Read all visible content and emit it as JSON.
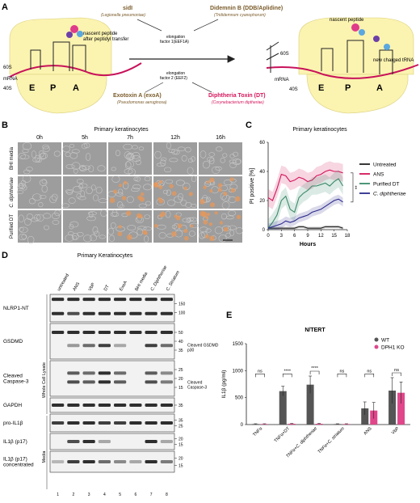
{
  "panels": {
    "a": {
      "letter": "A",
      "sidl": {
        "name": "sidI",
        "org": "(Legionella pneumoniae)"
      },
      "didemnin": {
        "name": "Didemnin B (DDB/Aplidine)",
        "org": "(Trididemnum cyanophorum)"
      },
      "exoa": {
        "name": "Exotoxin A (exoA)",
        "org": "(Pseudomonas aeruginosa)"
      },
      "dt": {
        "name": "Diphtheria Toxin (DT)",
        "org": "(Corynebacterium diptheriae)"
      },
      "ef1a": {
        "line1": "elongation",
        "line2": "factor 1(EEF1A)"
      },
      "ef2": {
        "line1": "elongation",
        "line2": "factor 2 (EEF2)"
      },
      "left": {
        "nascent1": "nascent peptide",
        "nascent2": "after peptidyl transfer",
        "s60": "60S",
        "s40": "40S",
        "mrna": "mRNA",
        "e": "E",
        "p": "P",
        "a": "A"
      },
      "right": {
        "nascent": "nascent peptide",
        "trna": "new charged tRNA",
        "s60": "60S",
        "s40": "40S",
        "mrna": "mRNA",
        "e": "E",
        "p": "P",
        "a": "A"
      }
    },
    "b": {
      "letter": "B",
      "title": "Primary keratinocytes",
      "timepoints": [
        "0h",
        "5h",
        "7h",
        "12h",
        "16h"
      ],
      "rows": [
        "BHI media",
        "C. diphtheriae",
        "Purified DT"
      ]
    },
    "c": {
      "letter": "C",
      "title": "Primary keratinocytes",
      "stars": "**",
      "legend_untreated": "Untreated",
      "legend_ans": "ANS",
      "legend_dt": "Purified DT",
      "legend_cd": "C. diphtheriae"
    },
    "d": {
      "letter": "D",
      "title": "Primary Keratinocytes",
      "lanes": [
        "untreated",
        "ANS",
        "VbP",
        "DT",
        "ExoA",
        "BHI media",
        "C. Diphtheriae",
        "C. Striatum"
      ],
      "lane_numbers": [
        "1",
        "2",
        "3",
        "4",
        "5",
        "6",
        "7",
        "8"
      ],
      "section_wcl": "Whole Cell Lysate",
      "section_media": "Media",
      "blots": [
        {
          "label": "NLRP1-NT",
          "mw": [
            "150",
            "100"
          ],
          "note": ""
        },
        {
          "label": "GSDMD",
          "mw": [
            "50",
            "40",
            "35"
          ],
          "note": "Cleaved GSDMD p30"
        },
        {
          "label": "Cleaved Caspase-3",
          "mw": [
            "25",
            "20",
            "15"
          ],
          "note": "Cleaved Caspase-3"
        },
        {
          "label": "GAPDH",
          "mw": [
            "35"
          ],
          "note": ""
        },
        {
          "label": "pro-IL1β",
          "mw": [
            "35",
            "25"
          ],
          "note": ""
        },
        {
          "label": "IL1β (p17)",
          "mw": [
            "20",
            "15"
          ],
          "note": ""
        },
        {
          "label": "IL1β (p17) concentrated",
          "mw": [
            "20",
            "15"
          ],
          "note": ""
        }
      ]
    },
    "e": {
      "letter": "E",
      "title": "N/TERT",
      "legend_wt": "WT",
      "legend_ko": "DPH1 KO",
      "sig": [
        "ns",
        "****",
        "****",
        "ns",
        "ns",
        "ns"
      ]
    }
  },
  "chart_data": [
    {
      "type": "line",
      "title": "Primary keratinocytes",
      "xlabel": "Hours",
      "ylabel": "PI positive [%]",
      "xlim": [
        0,
        18
      ],
      "ylim": [
        0,
        60
      ],
      "xticks": [
        0,
        3,
        6,
        9,
        12,
        15,
        18
      ],
      "yticks": [
        0,
        20,
        40,
        60
      ],
      "legend_position": "right",
      "colors": {
        "Untreated": "#222222",
        "ANS": "#d4145a",
        "Purified DT": "#3a8a6a",
        "C. diphtheriae": "#2b2a8c"
      },
      "x": [
        0,
        1,
        2,
        3,
        4,
        5,
        6,
        7,
        8,
        9,
        10,
        11,
        12,
        13,
        14,
        15,
        16,
        17
      ],
      "series": [
        {
          "name": "Untreated",
          "values": [
            1,
            1,
            1,
            1,
            1,
            1,
            1,
            2,
            2,
            1,
            1,
            1,
            1,
            2,
            2,
            2,
            2,
            1
          ]
        },
        {
          "name": "ANS",
          "values": [
            22,
            20,
            28,
            38,
            37,
            33,
            34,
            36,
            35,
            33,
            34,
            37,
            38,
            40,
            41,
            40,
            40,
            39
          ]
        },
        {
          "name": "Purified DT",
          "values": [
            1,
            5,
            10,
            20,
            23,
            14,
            12,
            22,
            25,
            27,
            30,
            30,
            31,
            32,
            30,
            33,
            35,
            30
          ]
        },
        {
          "name": "C. diphtheriae",
          "values": [
            1,
            2,
            3,
            4,
            6,
            5,
            6,
            8,
            9,
            10,
            12,
            13,
            14,
            16,
            18,
            20,
            21,
            19
          ]
        }
      ]
    },
    {
      "type": "bar",
      "title": "N/TERT",
      "xlabel": "",
      "ylabel": "IL1β (pg/ml)",
      "ylim": [
        0,
        1500
      ],
      "yticks": [
        0,
        500,
        1000,
        1500
      ],
      "legend_position": "top-right",
      "colors": {
        "WT": "#555555",
        "DPH1 KO": "#e0468a"
      },
      "categories": [
        "TNFα",
        "TNFα+DT",
        "TNFα+C. diphtheriae",
        "TNFα+C. striatum",
        "ANS",
        "VbP"
      ],
      "series": [
        {
          "name": "WT",
          "values": [
            10,
            620,
            740,
            10,
            300,
            630
          ]
        },
        {
          "name": "DPH1 KO",
          "values": [
            10,
            15,
            15,
            10,
            260,
            590
          ]
        }
      ],
      "errors": {
        "WT": [
          5,
          90,
          160,
          5,
          120,
          240
        ],
        "DPH1 KO": [
          5,
          5,
          5,
          5,
          150,
          200
        ]
      }
    }
  ]
}
